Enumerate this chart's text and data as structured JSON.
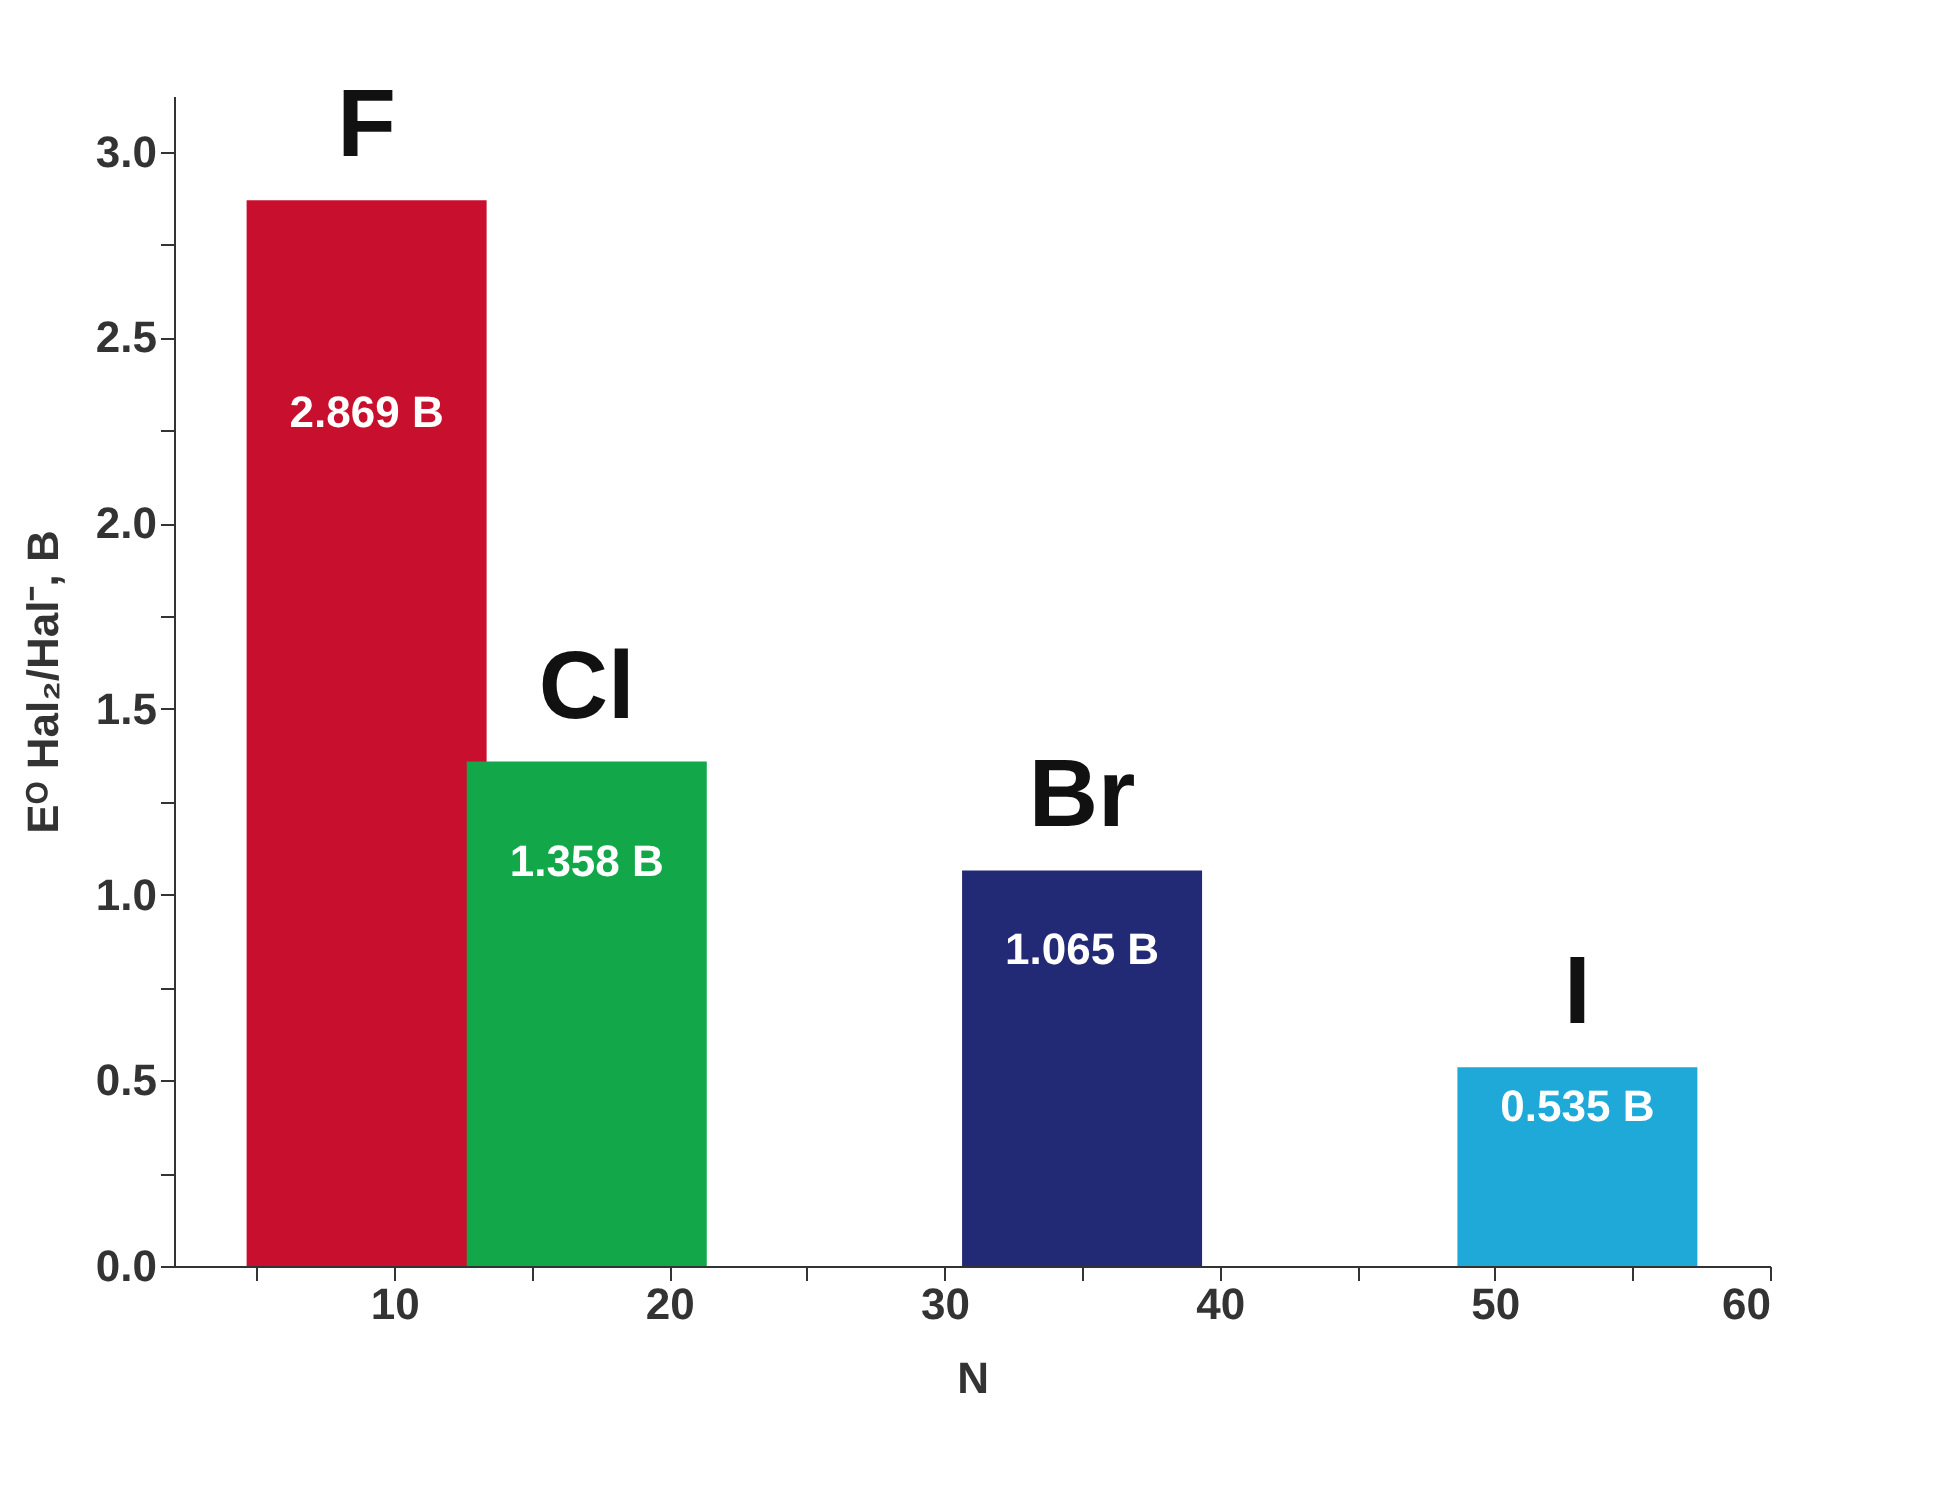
{
  "chart_data": {
    "type": "bar",
    "x": [
      9,
      17,
      35,
      53
    ],
    "values": [
      2.869,
      1.358,
      1.065,
      0.535
    ],
    "colors": [
      "#c8102e",
      "#12a84a",
      "#232a75",
      "#1fa9d8"
    ],
    "value_labels": [
      "2.869 B",
      "1.358 B",
      "1.065 B",
      "0.535 B"
    ],
    "annotations": [
      "F",
      "Cl",
      "Br",
      "I"
    ],
    "xlabel": "N",
    "ylabel": "Eᴼ Hal₂/Hal⁻, B",
    "xlim": [
      2,
      60
    ],
    "ylim": [
      0,
      3.15
    ],
    "xticks": [
      {
        "value": 5,
        "label": null
      },
      10,
      {
        "value": 15,
        "label": null
      },
      20,
      {
        "value": 25,
        "label": null
      },
      30,
      {
        "value": 35,
        "label": null
      },
      40,
      {
        "value": 45,
        "label": null
      },
      50,
      {
        "value": 55,
        "label": null
      },
      60
    ],
    "yticks": [
      {
        "value": 0,
        "label": "0.0"
      },
      {
        "value": 0.25,
        "label": null
      },
      0.5,
      {
        "value": 0.75,
        "label": null
      },
      {
        "value": 1,
        "label": "1.0"
      },
      {
        "value": 1.25,
        "label": null
      },
      1.5,
      {
        "value": 1.75,
        "label": null
      },
      {
        "value": 2,
        "label": "2.0"
      },
      {
        "value": 2.25,
        "label": null
      },
      2.5,
      {
        "value": 2.75,
        "label": null
      },
      {
        "value": 3,
        "label": "3.0"
      }
    ],
    "grid": false
  }
}
